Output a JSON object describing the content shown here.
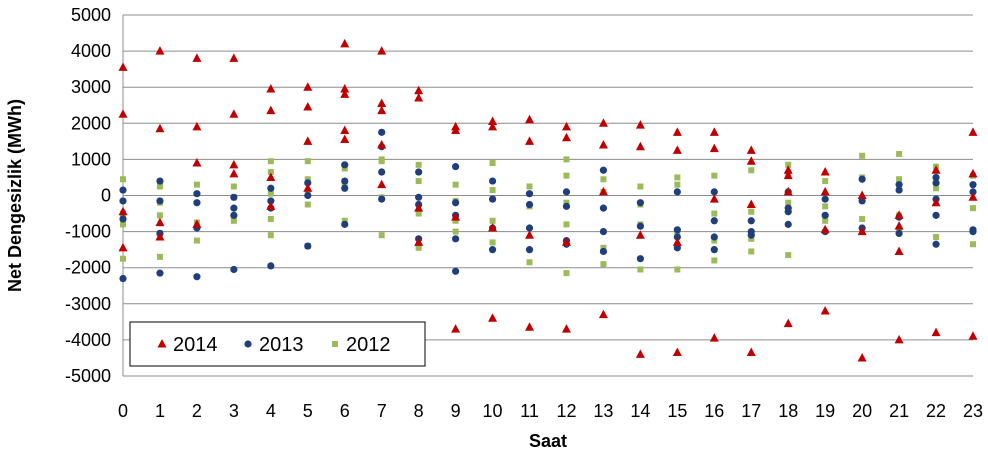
{
  "chart_data": {
    "type": "scatter",
    "xlabel": "Saat",
    "ylabel": "Net Dengesizlik (MWh)",
    "xticks": [
      "0",
      "1",
      "2",
      "3",
      "4",
      "5",
      "6",
      "7",
      "8",
      "9",
      "10",
      "11",
      "12",
      "13",
      "14",
      "15",
      "16",
      "17",
      "18",
      "19",
      "20",
      "21",
      "22",
      "23"
    ],
    "yticks": [
      "5000",
      "4000",
      "3000",
      "2000",
      "1000",
      "0",
      "-1000",
      "-2000",
      "-3000",
      "-4000",
      "-5000"
    ],
    "xlim": [
      0,
      23
    ],
    "ylim": [
      -5000,
      5000
    ],
    "grid": "horizontal",
    "legend_position": "bottom-left",
    "series": [
      {
        "name": "2014",
        "marker": "triangle",
        "color": "#c00000",
        "points": [
          [
            0,
            3550
          ],
          [
            0,
            2250
          ],
          [
            0,
            -1450
          ],
          [
            0,
            -450
          ],
          [
            1,
            4000
          ],
          [
            1,
            1850
          ],
          [
            1,
            -1150
          ],
          [
            1,
            -750
          ],
          [
            2,
            3800
          ],
          [
            2,
            1900
          ],
          [
            2,
            900
          ],
          [
            2,
            -800
          ],
          [
            3,
            3800
          ],
          [
            3,
            2250
          ],
          [
            3,
            850
          ],
          [
            3,
            600
          ],
          [
            4,
            2950
          ],
          [
            4,
            2350
          ],
          [
            4,
            500
          ],
          [
            4,
            -300
          ],
          [
            5,
            3000
          ],
          [
            5,
            2450
          ],
          [
            5,
            1500
          ],
          [
            5,
            200
          ],
          [
            6,
            4200
          ],
          [
            6,
            2950
          ],
          [
            6,
            2800
          ],
          [
            6,
            1800
          ],
          [
            6,
            1550
          ],
          [
            7,
            4000
          ],
          [
            7,
            2550
          ],
          [
            7,
            2350
          ],
          [
            7,
            1400
          ],
          [
            7,
            300
          ],
          [
            8,
            2900
          ],
          [
            8,
            2700
          ],
          [
            8,
            -350
          ],
          [
            8,
            -1300
          ],
          [
            9,
            1900
          ],
          [
            9,
            1800
          ],
          [
            9,
            -600
          ],
          [
            9,
            -3700
          ],
          [
            10,
            2050
          ],
          [
            10,
            1900
          ],
          [
            10,
            -900
          ],
          [
            10,
            -3400
          ],
          [
            11,
            2100
          ],
          [
            11,
            1500
          ],
          [
            11,
            -1100
          ],
          [
            11,
            -3650
          ],
          [
            12,
            1900
          ],
          [
            12,
            1600
          ],
          [
            12,
            -1300
          ],
          [
            12,
            -3700
          ],
          [
            13,
            2000
          ],
          [
            13,
            1400
          ],
          [
            13,
            100
          ],
          [
            13,
            -3300
          ],
          [
            14,
            1950
          ],
          [
            14,
            1350
          ],
          [
            14,
            -1100
          ],
          [
            14,
            -4400
          ],
          [
            15,
            1750
          ],
          [
            15,
            1250
          ],
          [
            15,
            -1300
          ],
          [
            15,
            -4350
          ],
          [
            16,
            1750
          ],
          [
            16,
            1300
          ],
          [
            16,
            -100
          ],
          [
            16,
            -3950
          ],
          [
            17,
            1250
          ],
          [
            17,
            950
          ],
          [
            17,
            -250
          ],
          [
            17,
            -4350
          ],
          [
            18,
            700
          ],
          [
            18,
            550
          ],
          [
            18,
            100
          ],
          [
            18,
            -3550
          ],
          [
            19,
            650
          ],
          [
            19,
            100
          ],
          [
            19,
            -950
          ],
          [
            19,
            -3200
          ],
          [
            20,
            0
          ],
          [
            20,
            -1000
          ],
          [
            20,
            -4500
          ],
          [
            21,
            -550
          ],
          [
            21,
            -850
          ],
          [
            21,
            -1550
          ],
          [
            21,
            -4000
          ],
          [
            22,
            700
          ],
          [
            22,
            -200
          ],
          [
            22,
            -3800
          ],
          [
            23,
            1750
          ],
          [
            23,
            600
          ],
          [
            23,
            -50
          ],
          [
            23,
            -3900
          ]
        ]
      },
      {
        "name": "2013",
        "marker": "circle",
        "color": "#1f3e7a",
        "points": [
          [
            0,
            150
          ],
          [
            0,
            -150
          ],
          [
            0,
            -650
          ],
          [
            0,
            -2300
          ],
          [
            1,
            400
          ],
          [
            1,
            -150
          ],
          [
            1,
            -1050
          ],
          [
            1,
            -2150
          ],
          [
            2,
            50
          ],
          [
            2,
            -200
          ],
          [
            2,
            -900
          ],
          [
            2,
            -2250
          ],
          [
            3,
            -50
          ],
          [
            3,
            -350
          ],
          [
            3,
            -550
          ],
          [
            3,
            -2050
          ],
          [
            4,
            200
          ],
          [
            4,
            -150
          ],
          [
            4,
            -350
          ],
          [
            4,
            -1950
          ],
          [
            5,
            350
          ],
          [
            5,
            0
          ],
          [
            5,
            -1400
          ],
          [
            6,
            850
          ],
          [
            6,
            400
          ],
          [
            6,
            200
          ],
          [
            6,
            -800
          ],
          [
            7,
            1750
          ],
          [
            7,
            1350
          ],
          [
            7,
            650
          ],
          [
            7,
            -100
          ],
          [
            8,
            650
          ],
          [
            8,
            -50
          ],
          [
            8,
            -250
          ],
          [
            8,
            -1200
          ],
          [
            9,
            800
          ],
          [
            9,
            -200
          ],
          [
            9,
            -550
          ],
          [
            9,
            -1200
          ],
          [
            9,
            -2100
          ],
          [
            10,
            400
          ],
          [
            10,
            -100
          ],
          [
            10,
            -900
          ],
          [
            10,
            -1500
          ],
          [
            11,
            50
          ],
          [
            11,
            -250
          ],
          [
            11,
            -900
          ],
          [
            11,
            -1500
          ],
          [
            12,
            100
          ],
          [
            12,
            -300
          ],
          [
            12,
            -1250
          ],
          [
            12,
            -1350
          ],
          [
            13,
            700
          ],
          [
            13,
            -350
          ],
          [
            13,
            -1000
          ],
          [
            13,
            -1550
          ],
          [
            14,
            -200
          ],
          [
            14,
            -850
          ],
          [
            14,
            -1750
          ],
          [
            15,
            100
          ],
          [
            15,
            -950
          ],
          [
            15,
            -1150
          ],
          [
            15,
            -1450
          ],
          [
            16,
            100
          ],
          [
            16,
            -700
          ],
          [
            16,
            -1150
          ],
          [
            16,
            -1500
          ],
          [
            17,
            -700
          ],
          [
            17,
            -1000
          ],
          [
            17,
            -1100
          ],
          [
            18,
            100
          ],
          [
            18,
            -350
          ],
          [
            18,
            -450
          ],
          [
            18,
            -800
          ],
          [
            19,
            -100
          ],
          [
            19,
            -550
          ],
          [
            19,
            -1000
          ],
          [
            20,
            450
          ],
          [
            20,
            -150
          ],
          [
            20,
            -900
          ],
          [
            21,
            300
          ],
          [
            21,
            150
          ],
          [
            21,
            -600
          ],
          [
            21,
            -1050
          ],
          [
            22,
            500
          ],
          [
            22,
            350
          ],
          [
            22,
            -100
          ],
          [
            22,
            -550
          ],
          [
            22,
            -1350
          ],
          [
            23,
            300
          ],
          [
            23,
            100
          ],
          [
            23,
            -950
          ],
          [
            23,
            -1000
          ]
        ]
      },
      {
        "name": "2012",
        "marker": "square",
        "color": "#9bbb59",
        "points": [
          [
            0,
            450
          ],
          [
            0,
            -500
          ],
          [
            0,
            -800
          ],
          [
            0,
            -1750
          ],
          [
            1,
            250
          ],
          [
            1,
            -200
          ],
          [
            1,
            -550
          ],
          [
            1,
            -1050
          ],
          [
            1,
            -1700
          ],
          [
            2,
            300
          ],
          [
            2,
            -750
          ],
          [
            2,
            -1250
          ],
          [
            3,
            250
          ],
          [
            3,
            -50
          ],
          [
            3,
            -700
          ],
          [
            4,
            950
          ],
          [
            4,
            650
          ],
          [
            4,
            50
          ],
          [
            4,
            -650
          ],
          [
            4,
            -1100
          ],
          [
            5,
            950
          ],
          [
            5,
            450
          ],
          [
            5,
            50
          ],
          [
            5,
            -250
          ],
          [
            5,
            -1400
          ],
          [
            6,
            750
          ],
          [
            6,
            300
          ],
          [
            6,
            -700
          ],
          [
            7,
            1000
          ],
          [
            7,
            950
          ],
          [
            7,
            -50
          ],
          [
            7,
            -1100
          ],
          [
            8,
            850
          ],
          [
            8,
            400
          ],
          [
            8,
            -500
          ],
          [
            8,
            -1450
          ],
          [
            9,
            300
          ],
          [
            9,
            -150
          ],
          [
            9,
            -700
          ],
          [
            9,
            -1000
          ],
          [
            10,
            900
          ],
          [
            10,
            150
          ],
          [
            10,
            -100
          ],
          [
            10,
            -700
          ],
          [
            10,
            -1300
          ],
          [
            11,
            250
          ],
          [
            11,
            -300
          ],
          [
            11,
            -1850
          ],
          [
            12,
            1000
          ],
          [
            12,
            550
          ],
          [
            12,
            -200
          ],
          [
            12,
            -800
          ],
          [
            12,
            -2150
          ],
          [
            13,
            450
          ],
          [
            13,
            100
          ],
          [
            13,
            -1450
          ],
          [
            13,
            -1900
          ],
          [
            14,
            250
          ],
          [
            14,
            -250
          ],
          [
            14,
            -800
          ],
          [
            14,
            -2050
          ],
          [
            15,
            500
          ],
          [
            15,
            300
          ],
          [
            15,
            -1050
          ],
          [
            15,
            -2050
          ],
          [
            16,
            550
          ],
          [
            16,
            -500
          ],
          [
            16,
            -1250
          ],
          [
            16,
            -1800
          ],
          [
            17,
            700
          ],
          [
            17,
            -450
          ],
          [
            17,
            -1200
          ],
          [
            17,
            -1550
          ],
          [
            18,
            850
          ],
          [
            18,
            550
          ],
          [
            18,
            -200
          ],
          [
            18,
            -1650
          ],
          [
            19,
            400
          ],
          [
            19,
            -300
          ],
          [
            19,
            -700
          ],
          [
            20,
            1100
          ],
          [
            20,
            500
          ],
          [
            20,
            -650
          ],
          [
            20,
            -950
          ],
          [
            21,
            1150
          ],
          [
            21,
            450
          ],
          [
            21,
            -550
          ],
          [
            21,
            -950
          ],
          [
            22,
            800
          ],
          [
            22,
            200
          ],
          [
            22,
            -1150
          ],
          [
            23,
            550
          ],
          [
            23,
            -350
          ],
          [
            23,
            -1350
          ]
        ]
      }
    ]
  }
}
